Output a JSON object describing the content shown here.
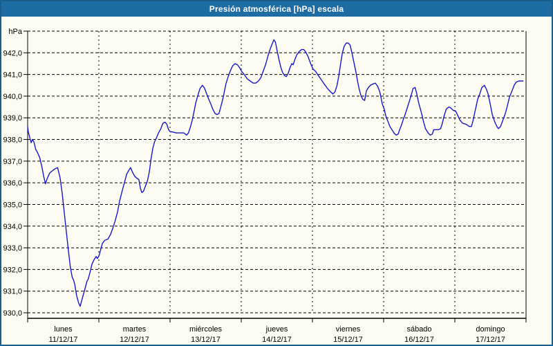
{
  "window": {
    "title": "Presión atmosférica [hPa] escala"
  },
  "colors": {
    "titlebar_bg": "#1E6CA4",
    "titlebar_text": "#FFFFFF",
    "frame_border": "#1B5E8C",
    "background": "#FCFCF2",
    "grid": "#000000",
    "axis": "#000000",
    "line": "#1717C9"
  },
  "chart_data": {
    "type": "line",
    "title": "Presión atmosférica [hPa] escala",
    "ylabel_unit": "hPa",
    "ylim": [
      930,
      943
    ],
    "xlim_hours": [
      0,
      168
    ],
    "grid": "dashed",
    "legend": "none",
    "y_ticks": [
      {
        "value": 930,
        "label": "930,0"
      },
      {
        "value": 931,
        "label": "931,0"
      },
      {
        "value": 932,
        "label": "932,0"
      },
      {
        "value": 933,
        "label": "933,0"
      },
      {
        "value": 934,
        "label": "934,0"
      },
      {
        "value": 935,
        "label": "935,0"
      },
      {
        "value": 936,
        "label": "936,0"
      },
      {
        "value": 937,
        "label": "937,0"
      },
      {
        "value": 938,
        "label": "938,0"
      },
      {
        "value": 939,
        "label": "939,0"
      },
      {
        "value": 940,
        "label": "940,0"
      },
      {
        "value": 941,
        "label": "941,0"
      },
      {
        "value": 942,
        "label": "942,0"
      }
    ],
    "days": [
      {
        "day": "lunes",
        "date": "11/12/17"
      },
      {
        "day": "martes",
        "date": "12/12/17"
      },
      {
        "day": "miércoles",
        "date": "13/12/17"
      },
      {
        "day": "jueves",
        "date": "14/12/17"
      },
      {
        "day": "viernes",
        "date": "15/12/17"
      },
      {
        "day": "sábado",
        "date": "16/12/17"
      },
      {
        "day": "domingo",
        "date": "17/12/17"
      }
    ],
    "series": [
      {
        "name": "Presión atmosférica",
        "points": [
          [
            0.0,
            938.6
          ],
          [
            0.2,
            938.35
          ],
          [
            0.8,
            938.05
          ],
          [
            1.2,
            937.85
          ],
          [
            1.6,
            938.0
          ],
          [
            2.1,
            937.9
          ],
          [
            2.7,
            937.55
          ],
          [
            3.3,
            937.4
          ],
          [
            4.1,
            937.15
          ],
          [
            4.7,
            936.8
          ],
          [
            5.4,
            936.3
          ],
          [
            6.0,
            935.95
          ],
          [
            6.6,
            936.2
          ],
          [
            7.4,
            936.45
          ],
          [
            8.3,
            936.55
          ],
          [
            9.3,
            936.65
          ],
          [
            10.1,
            936.7
          ],
          [
            10.9,
            936.25
          ],
          [
            11.6,
            935.55
          ],
          [
            12.2,
            934.8
          ],
          [
            12.8,
            934.05
          ],
          [
            13.4,
            933.3
          ],
          [
            13.8,
            932.8
          ],
          [
            14.4,
            932.1
          ],
          [
            15.0,
            931.65
          ],
          [
            15.5,
            931.5
          ],
          [
            15.9,
            931.3
          ],
          [
            16.5,
            930.8
          ],
          [
            17.2,
            930.45
          ],
          [
            17.7,
            930.3
          ],
          [
            18.2,
            930.55
          ],
          [
            18.9,
            930.9
          ],
          [
            19.4,
            931.15
          ],
          [
            20.0,
            931.45
          ],
          [
            20.4,
            931.55
          ],
          [
            21.0,
            931.85
          ],
          [
            21.7,
            932.25
          ],
          [
            22.4,
            932.45
          ],
          [
            23.1,
            932.6
          ],
          [
            23.5,
            932.5
          ],
          [
            24.1,
            932.65
          ],
          [
            24.5,
            932.85
          ],
          [
            25.2,
            933.2
          ],
          [
            26.0,
            933.35
          ],
          [
            27.0,
            933.4
          ],
          [
            27.9,
            933.6
          ],
          [
            28.7,
            933.9
          ],
          [
            29.5,
            934.25
          ],
          [
            30.3,
            934.65
          ],
          [
            31.0,
            935.15
          ],
          [
            31.8,
            935.6
          ],
          [
            32.6,
            936.0
          ],
          [
            33.4,
            936.4
          ],
          [
            34.2,
            936.6
          ],
          [
            34.7,
            936.7
          ],
          [
            35.3,
            936.5
          ],
          [
            36.1,
            936.3
          ],
          [
            36.9,
            936.2
          ],
          [
            37.5,
            936.15
          ],
          [
            38.0,
            935.75
          ],
          [
            38.5,
            935.55
          ],
          [
            39.0,
            935.6
          ],
          [
            39.7,
            935.85
          ],
          [
            40.3,
            936.05
          ],
          [
            41.0,
            936.5
          ],
          [
            41.6,
            937.1
          ],
          [
            42.2,
            937.6
          ],
          [
            42.8,
            937.9
          ],
          [
            43.5,
            938.1
          ],
          [
            44.1,
            938.3
          ],
          [
            44.9,
            938.5
          ],
          [
            45.6,
            938.75
          ],
          [
            46.3,
            938.8
          ],
          [
            46.9,
            938.7
          ],
          [
            47.5,
            938.45
          ],
          [
            48.1,
            938.35
          ],
          [
            48.8,
            938.35
          ],
          [
            50.0,
            938.3
          ],
          [
            51.5,
            938.3
          ],
          [
            52.7,
            938.3
          ],
          [
            53.6,
            938.2
          ],
          [
            54.2,
            938.3
          ],
          [
            54.8,
            938.55
          ],
          [
            55.5,
            938.9
          ],
          [
            56.1,
            939.3
          ],
          [
            56.7,
            939.7
          ],
          [
            57.3,
            940.0
          ],
          [
            58.1,
            940.35
          ],
          [
            58.9,
            940.5
          ],
          [
            59.5,
            940.4
          ],
          [
            60.1,
            940.2
          ],
          [
            60.9,
            939.9
          ],
          [
            61.7,
            939.65
          ],
          [
            62.4,
            939.4
          ],
          [
            63.2,
            939.2
          ],
          [
            63.8,
            939.15
          ],
          [
            64.5,
            939.2
          ],
          [
            65.2,
            939.55
          ],
          [
            66.0,
            940.0
          ],
          [
            66.8,
            940.55
          ],
          [
            67.6,
            940.9
          ],
          [
            68.4,
            941.2
          ],
          [
            69.1,
            941.4
          ],
          [
            69.9,
            941.5
          ],
          [
            70.7,
            941.45
          ],
          [
            71.5,
            941.3
          ],
          [
            72.1,
            941.15
          ],
          [
            73.0,
            941.0
          ],
          [
            74.0,
            940.8
          ],
          [
            75.0,
            940.7
          ],
          [
            76.0,
            940.6
          ],
          [
            76.9,
            940.6
          ],
          [
            77.8,
            940.7
          ],
          [
            78.6,
            940.85
          ],
          [
            79.4,
            941.15
          ],
          [
            80.2,
            941.45
          ],
          [
            81.0,
            941.85
          ],
          [
            81.7,
            942.15
          ],
          [
            82.4,
            942.4
          ],
          [
            83.0,
            942.6
          ],
          [
            83.5,
            942.5
          ],
          [
            84.1,
            942.1
          ],
          [
            84.7,
            941.7
          ],
          [
            85.3,
            941.35
          ],
          [
            85.9,
            941.1
          ],
          [
            86.6,
            940.95
          ],
          [
            87.2,
            940.9
          ],
          [
            87.8,
            941.05
          ],
          [
            88.4,
            941.3
          ],
          [
            89.0,
            941.5
          ],
          [
            89.5,
            941.45
          ],
          [
            90.1,
            941.7
          ],
          [
            90.7,
            941.9
          ],
          [
            91.5,
            942.05
          ],
          [
            92.3,
            942.15
          ],
          [
            93.1,
            942.15
          ],
          [
            93.9,
            942.0
          ],
          [
            94.6,
            941.8
          ],
          [
            95.4,
            941.5
          ],
          [
            96.2,
            941.25
          ],
          [
            97.0,
            941.15
          ],
          [
            98.0,
            940.95
          ],
          [
            99.0,
            940.75
          ],
          [
            100.0,
            940.55
          ],
          [
            101.1,
            940.35
          ],
          [
            102.1,
            940.2
          ],
          [
            102.9,
            940.1
          ],
          [
            103.6,
            940.2
          ],
          [
            104.3,
            940.5
          ],
          [
            104.9,
            940.95
          ],
          [
            105.5,
            941.5
          ],
          [
            106.1,
            942.0
          ],
          [
            106.7,
            942.3
          ],
          [
            107.4,
            942.45
          ],
          [
            108.1,
            942.45
          ],
          [
            108.7,
            942.35
          ],
          [
            109.3,
            942.0
          ],
          [
            109.9,
            941.6
          ],
          [
            110.6,
            941.15
          ],
          [
            111.2,
            940.7
          ],
          [
            111.8,
            940.3
          ],
          [
            112.4,
            940.0
          ],
          [
            113.0,
            939.85
          ],
          [
            113.6,
            939.8
          ],
          [
            114.2,
            940.25
          ],
          [
            114.9,
            940.4
          ],
          [
            115.5,
            940.5
          ],
          [
            116.2,
            940.55
          ],
          [
            117.2,
            940.6
          ],
          [
            118.0,
            940.45
          ],
          [
            118.7,
            940.2
          ],
          [
            119.1,
            939.95
          ],
          [
            119.5,
            939.65
          ],
          [
            120.2,
            939.4
          ],
          [
            120.7,
            939.1
          ],
          [
            121.4,
            938.85
          ],
          [
            122.1,
            938.6
          ],
          [
            122.8,
            938.45
          ],
          [
            123.5,
            938.3
          ],
          [
            124.2,
            938.2
          ],
          [
            124.9,
            938.25
          ],
          [
            125.4,
            938.45
          ],
          [
            126.1,
            938.7
          ],
          [
            126.8,
            939.0
          ],
          [
            127.0,
            939.05
          ],
          [
            127.6,
            939.3
          ],
          [
            128.3,
            939.6
          ],
          [
            129.2,
            940.0
          ],
          [
            129.9,
            940.35
          ],
          [
            130.6,
            940.4
          ],
          [
            131.1,
            940.15
          ],
          [
            131.8,
            939.7
          ],
          [
            132.7,
            939.25
          ],
          [
            133.4,
            938.85
          ],
          [
            134.1,
            938.5
          ],
          [
            135.0,
            938.3
          ],
          [
            135.7,
            938.2
          ],
          [
            136.4,
            938.25
          ],
          [
            136.9,
            938.45
          ],
          [
            138.5,
            938.45
          ],
          [
            139.2,
            938.5
          ],
          [
            139.7,
            938.7
          ],
          [
            140.4,
            939.1
          ],
          [
            141.1,
            939.4
          ],
          [
            142.0,
            939.5
          ],
          [
            142.7,
            939.45
          ],
          [
            143.4,
            939.35
          ],
          [
            144.3,
            939.3
          ],
          [
            145.0,
            939.1
          ],
          [
            145.7,
            938.9
          ],
          [
            146.6,
            938.75
          ],
          [
            147.8,
            938.7
          ],
          [
            148.9,
            938.6
          ],
          [
            149.6,
            938.6
          ],
          [
            150.1,
            938.85
          ],
          [
            150.8,
            939.3
          ],
          [
            151.7,
            939.85
          ],
          [
            152.4,
            940.1
          ],
          [
            153.1,
            940.4
          ],
          [
            154.0,
            940.5
          ],
          [
            154.7,
            940.3
          ],
          [
            155.2,
            940.1
          ],
          [
            155.9,
            939.65
          ],
          [
            156.6,
            939.15
          ],
          [
            157.5,
            938.8
          ],
          [
            158.2,
            938.6
          ],
          [
            158.7,
            938.5
          ],
          [
            159.4,
            938.6
          ],
          [
            160.1,
            938.85
          ],
          [
            161.0,
            939.2
          ],
          [
            161.7,
            939.55
          ],
          [
            162.4,
            939.95
          ],
          [
            163.3,
            940.25
          ],
          [
            164.0,
            940.5
          ],
          [
            164.7,
            940.65
          ],
          [
            165.6,
            940.7
          ],
          [
            166.3,
            940.7
          ],
          [
            167.0,
            940.7
          ]
        ]
      }
    ]
  }
}
